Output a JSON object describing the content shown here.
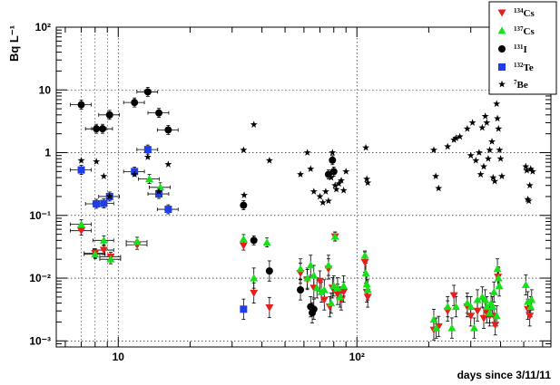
{
  "chart_data": {
    "type": "scatter",
    "title": "",
    "xlabel": "days since 3/11/11",
    "ylabel": "Bq L⁻¹",
    "x_scale": "log",
    "y_scale": "log",
    "xlim": [
      5.5,
      650
    ],
    "ylim": [
      0.0008,
      100
    ],
    "x_tick_labels": [
      "10",
      "10²"
    ],
    "y_tick_labels": [
      "10⁻³",
      "10⁻²",
      "10⁻¹",
      "1",
      "10",
      "10²"
    ],
    "grid": true,
    "legend_placement": "top-right",
    "series": [
      {
        "name": "¹³⁴Cs",
        "sup": "134",
        "base": "Cs",
        "marker": "triangle-down",
        "color": "#e61e1e",
        "points": [
          [
            7,
            0.057
          ],
          [
            8,
            0.025
          ],
          [
            8.7,
            0.028
          ],
          [
            9.3,
            0.022
          ],
          [
            12,
            0.034
          ],
          [
            33.5,
            0.033
          ],
          [
            37,
            0.0058
          ],
          [
            43,
            0.0034
          ],
          [
            58,
            0.012
          ],
          [
            62,
            0.0095
          ],
          [
            66,
            0.007
          ],
          [
            70,
            0.009
          ],
          [
            73,
            0.0045
          ],
          [
            76,
            0.014
          ],
          [
            77,
            0.0035
          ],
          [
            79,
            0.007
          ],
          [
            81,
            0.046
          ],
          [
            83,
            0.0055
          ],
          [
            86,
            0.0045
          ],
          [
            88,
            0.006
          ],
          [
            108,
            0.018
          ],
          [
            110,
            0.006
          ],
          [
            111,
            0.005
          ],
          [
            210,
            0.0015
          ],
          [
            220,
            0.0017
          ],
          [
            240,
            0.003
          ],
          [
            255,
            0.0053
          ],
          [
            290,
            0.0035
          ],
          [
            300,
            0.0025
          ],
          [
            320,
            0.003
          ],
          [
            340,
            0.0023
          ],
          [
            350,
            0.0028
          ],
          [
            360,
            0.0025
          ],
          [
            375,
            0.0025
          ],
          [
            380,
            0.0018
          ],
          [
            390,
            0.0105
          ],
          [
            520,
            0.0032
          ],
          [
            530,
            0.0025
          ]
        ]
      },
      {
        "name": "¹³⁷Cs",
        "sup": "137",
        "base": "Cs",
        "marker": "triangle-up",
        "color": "#18e018",
        "points": [
          [
            7,
            0.072
          ],
          [
            8,
            0.024
          ],
          [
            8.7,
            0.04
          ],
          [
            9.3,
            0.02
          ],
          [
            12,
            0.038
          ],
          [
            13.5,
            0.38
          ],
          [
            15,
            0.28
          ],
          [
            33.5,
            0.042
          ],
          [
            37,
            0.01
          ],
          [
            42,
            0.037
          ],
          [
            58,
            0.014
          ],
          [
            62,
            0.01
          ],
          [
            64,
            0.016
          ],
          [
            66,
            0.011
          ],
          [
            68,
            0.007
          ],
          [
            71,
            0.006
          ],
          [
            73,
            0.0065
          ],
          [
            76,
            0.016
          ],
          [
            78,
            0.004
          ],
          [
            80,
            0.0075
          ],
          [
            81,
            0.046
          ],
          [
            83,
            0.007
          ],
          [
            85,
            0.005
          ],
          [
            88,
            0.0075
          ],
          [
            108,
            0.023
          ],
          [
            109,
            0.012
          ],
          [
            110,
            0.008
          ],
          [
            111,
            0.0065
          ],
          [
            210,
            0.0022
          ],
          [
            215,
            0.0016
          ],
          [
            240,
            0.0035
          ],
          [
            250,
            0.0016
          ],
          [
            260,
            0.0035
          ],
          [
            290,
            0.004
          ],
          [
            300,
            0.0035
          ],
          [
            310,
            0.0016
          ],
          [
            320,
            0.0045
          ],
          [
            335,
            0.005
          ],
          [
            345,
            0.0045
          ],
          [
            350,
            0.0035
          ],
          [
            360,
            0.0028
          ],
          [
            365,
            0.004
          ],
          [
            370,
            0.0035
          ],
          [
            375,
            0.006
          ],
          [
            385,
            0.0025
          ],
          [
            388,
            0.014
          ],
          [
            392,
            0.01
          ],
          [
            395,
            0.0075
          ],
          [
            510,
            0.0078
          ],
          [
            520,
            0.0042
          ],
          [
            535,
            0.0035
          ],
          [
            540,
            0.0045
          ]
        ]
      },
      {
        "name": "¹³¹I",
        "sup": "131",
        "base": "I",
        "marker": "circle",
        "color": "#000000",
        "points": [
          [
            7,
            5.8
          ],
          [
            8.1,
            2.4
          ],
          [
            8.6,
            2.4
          ],
          [
            9.2,
            4.0
          ],
          [
            11.7,
            6.3
          ],
          [
            13.3,
            9.3
          ],
          [
            14.8,
            4.3
          ],
          [
            16.2,
            2.3
          ],
          [
            33.5,
            0.145
          ],
          [
            37,
            0.04
          ],
          [
            43,
            0.013
          ],
          [
            58,
            0.0065
          ],
          [
            64,
            0.0035
          ],
          [
            65,
            0.0028
          ],
          [
            66,
            0.0032
          ],
          [
            76,
            0.45
          ],
          [
            79,
            0.76
          ],
          [
            80,
            0.5
          ]
        ]
      },
      {
        "name": "¹³²Te",
        "sup": "132",
        "base": "Te",
        "marker": "square",
        "color": "#1f3fe6",
        "points": [
          [
            7,
            0.53
          ],
          [
            8.1,
            0.153
          ],
          [
            8.7,
            0.155
          ],
          [
            9.2,
            0.2
          ],
          [
            11.7,
            0.5
          ],
          [
            13.3,
            1.12
          ],
          [
            14.8,
            0.22
          ],
          [
            16.2,
            0.125
          ],
          [
            33.5,
            0.0032
          ]
        ]
      },
      {
        "name": "⁷Be",
        "sup": "7",
        "base": "Be",
        "marker": "star",
        "color": "#000000",
        "points": [
          [
            7,
            0.75
          ],
          [
            8.1,
            0.72
          ],
          [
            8.7,
            0.42
          ],
          [
            9.2,
            0.2
          ],
          [
            11.7,
            0.45
          ],
          [
            13.3,
            0.85
          ],
          [
            14.8,
            0.24
          ],
          [
            16.2,
            0.65
          ],
          [
            33.5,
            1.1
          ],
          [
            33.7,
            0.21
          ],
          [
            37,
            2.8
          ],
          [
            43,
            0.75
          ],
          [
            58,
            0.45
          ],
          [
            62,
            1.0
          ],
          [
            64,
            0.55
          ],
          [
            66,
            0.24
          ],
          [
            70,
            0.2
          ],
          [
            72,
            0.16
          ],
          [
            74,
            0.24
          ],
          [
            76,
            0.17
          ],
          [
            78,
            0.4
          ],
          [
            79,
            1.0
          ],
          [
            80,
            0.5
          ],
          [
            81,
            0.3
          ],
          [
            82,
            0.26
          ],
          [
            84,
            0.32
          ],
          [
            86,
            0.36
          ],
          [
            88,
            0.25
          ],
          [
            90,
            0.5
          ],
          [
            109,
            1.2
          ],
          [
            110,
            0.38
          ],
          [
            111,
            0.33
          ],
          [
            210,
            1.1
          ],
          [
            214,
            0.42
          ],
          [
            220,
            0.27
          ],
          [
            240,
            1.25
          ],
          [
            255,
            1.6
          ],
          [
            260,
            1.7
          ],
          [
            270,
            1.8
          ],
          [
            290,
            2.4
          ],
          [
            300,
            0.9
          ],
          [
            305,
            3.0
          ],
          [
            315,
            0.75
          ],
          [
            325,
            1.0
          ],
          [
            330,
            0.45
          ],
          [
            335,
            2.5
          ],
          [
            340,
            0.6
          ],
          [
            345,
            3.8
          ],
          [
            350,
            3.0
          ],
          [
            355,
            0.8
          ],
          [
            360,
            1.1
          ],
          [
            368,
            1.5
          ],
          [
            372,
            0.4
          ],
          [
            378,
            0.35
          ],
          [
            385,
            6.0
          ],
          [
            388,
            3.5
          ],
          [
            392,
            2.4
          ],
          [
            396,
            1.1
          ],
          [
            400,
            0.8
          ],
          [
            405,
            0.42
          ],
          [
            510,
            0.6
          ],
          [
            515,
            0.52
          ],
          [
            520,
            0.18
          ],
          [
            525,
            0.17
          ],
          [
            530,
            0.3
          ],
          [
            535,
            0.55
          ],
          [
            545,
            0.5
          ]
        ]
      }
    ]
  }
}
